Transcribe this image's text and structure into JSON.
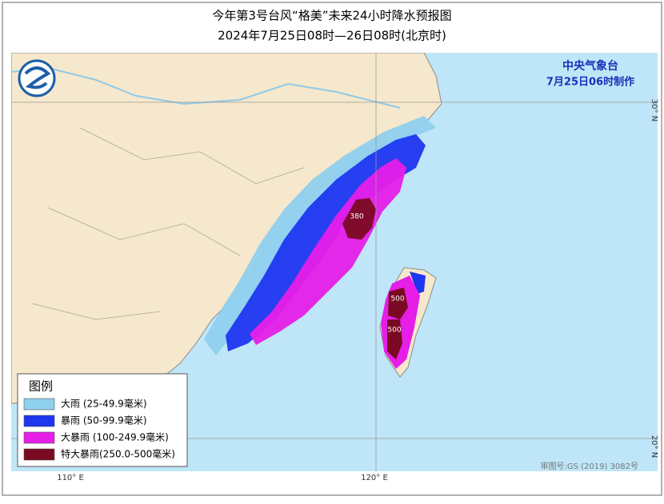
{
  "header": {
    "title": "今年第3号台风“格美”未来24小时降水预报图",
    "subtitle": "2024年7月25日08时—26日08时(北京时)"
  },
  "agency": {
    "name": "中央气象台",
    "issued": "7月25日06时制作"
  },
  "legend": {
    "title": "图例",
    "items": [
      {
        "label": "大雨 (25-49.9毫米)",
        "color": "#8fd0ee"
      },
      {
        "label": "暴雨 (50-99.9毫米)",
        "color": "#1f36f0"
      },
      {
        "label": "大暴雨 (100-249.9毫米)",
        "color": "#e61ee8"
      },
      {
        "label": "特大暴雨(250.0-500毫米)",
        "color": "#7a0a22"
      }
    ]
  },
  "annotations": [
    "380",
    "500",
    "500"
  ],
  "grid": {
    "lon_labels": [
      "110° E",
      "120° E"
    ],
    "lat_labels": [
      "30° N",
      "20° N"
    ]
  },
  "footer": {
    "review": "审图号:GS (2019) 3082号"
  }
}
